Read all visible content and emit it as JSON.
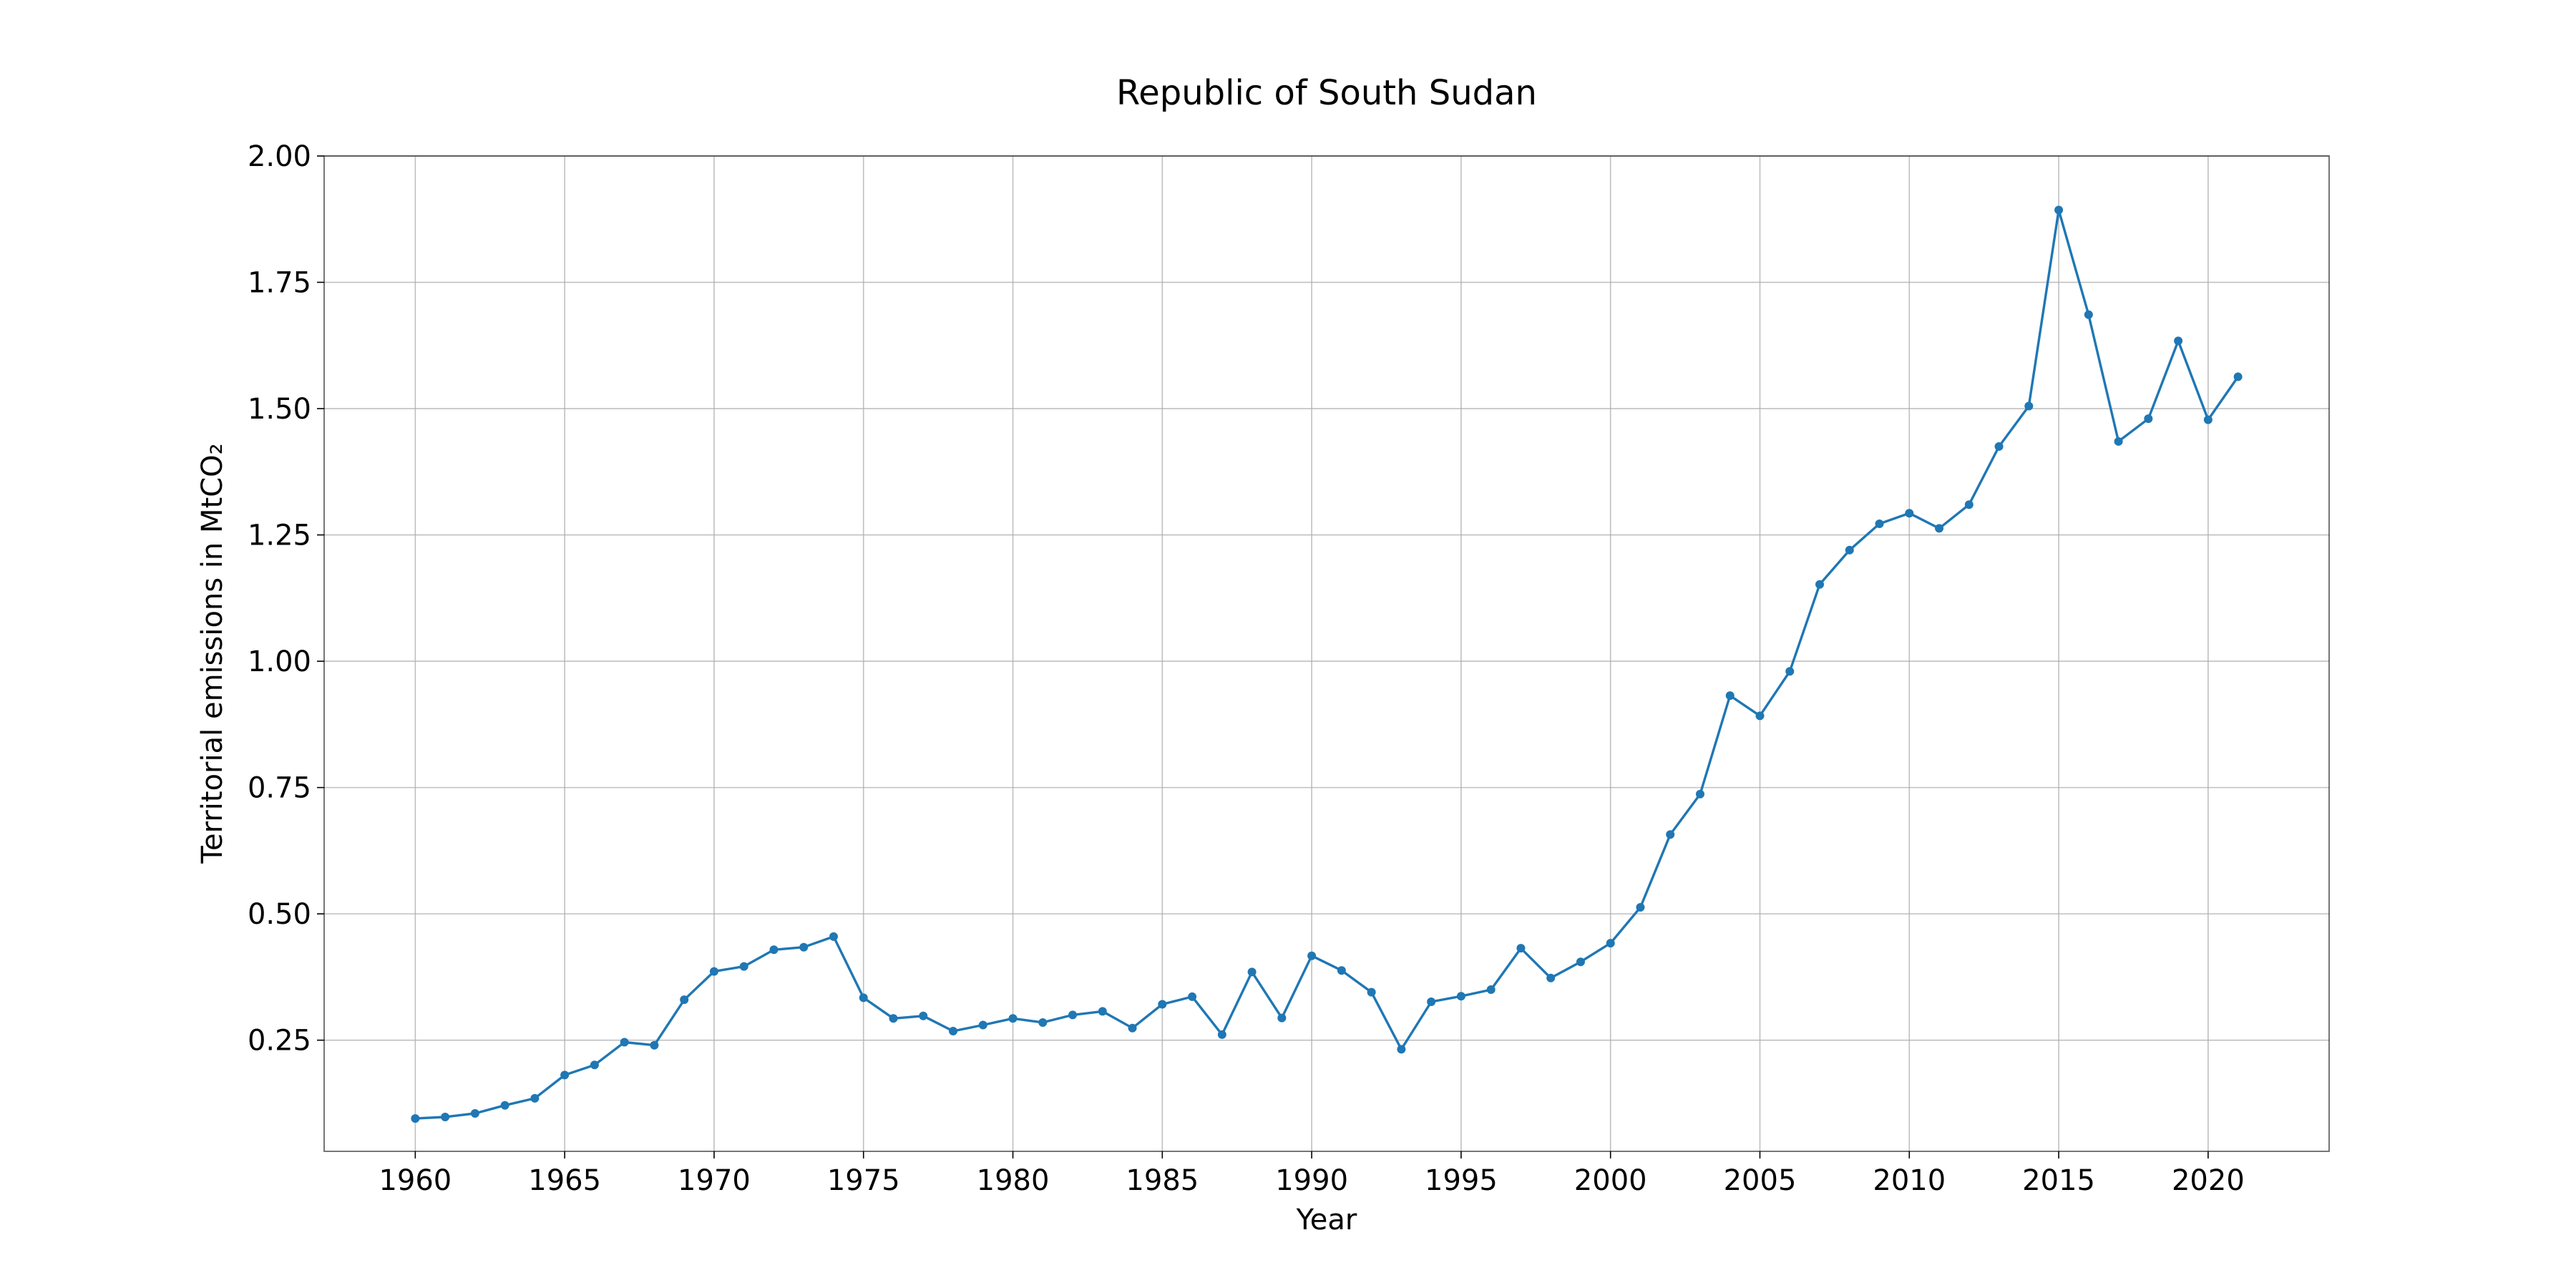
{
  "chart_data": {
    "type": "line",
    "title": "Republic of South Sudan",
    "xlabel": "Year",
    "ylabel": "Territorial emissions in MtCO₂",
    "xlim": [
      1956.95,
      2024.05
    ],
    "ylim": [
      0.03,
      2.0
    ],
    "x_ticks": [
      1960,
      1965,
      1970,
      1975,
      1980,
      1985,
      1990,
      1995,
      2000,
      2005,
      2010,
      2015,
      2020
    ],
    "y_ticks": [
      0.25,
      0.5,
      0.75,
      1.0,
      1.25,
      1.5,
      1.75,
      2.0
    ],
    "y_tick_labels": [
      "0.25",
      "0.50",
      "0.75",
      "1.00",
      "1.25",
      "1.50",
      "1.75",
      "2.00"
    ],
    "grid": true,
    "legend": "none",
    "color": "#1f77b4",
    "series": [
      {
        "x": [
          1960,
          1961,
          1962,
          1963,
          1964,
          1965,
          1966,
          1967,
          1968,
          1969,
          1970,
          1971,
          1972,
          1973,
          1974,
          1975,
          1976,
          1977,
          1978,
          1979,
          1980,
          1981,
          1982,
          1983,
          1984,
          1985,
          1986,
          1987,
          1988,
          1989,
          1990,
          1991,
          1992,
          1993,
          1994,
          1995,
          1996,
          1997,
          1998,
          1999,
          2000,
          2001,
          2002,
          2003,
          2004,
          2005,
          2006,
          2007,
          2008,
          2009,
          2010,
          2011,
          2012,
          2013,
          2014,
          2015,
          2016,
          2017,
          2018,
          2019,
          2020,
          2021
        ],
        "values": [
          0.095,
          0.098,
          0.105,
          0.121,
          0.135,
          0.181,
          0.201,
          0.246,
          0.24,
          0.33,
          0.386,
          0.396,
          0.429,
          0.434,
          0.455,
          0.334,
          0.293,
          0.298,
          0.268,
          0.28,
          0.293,
          0.285,
          0.3,
          0.307,
          0.274,
          0.321,
          0.336,
          0.261,
          0.385,
          0.294,
          0.417,
          0.388,
          0.345,
          0.232,
          0.326,
          0.337,
          0.35,
          0.432,
          0.373,
          0.405,
          0.442,
          0.513,
          0.657,
          0.737,
          0.932,
          0.892,
          0.98,
          1.152,
          1.22,
          1.272,
          1.293,
          1.263,
          1.31,
          1.425,
          1.505,
          1.893,
          1.686,
          1.435,
          1.48,
          1.634,
          1.478,
          1.563
        ]
      }
    ]
  }
}
